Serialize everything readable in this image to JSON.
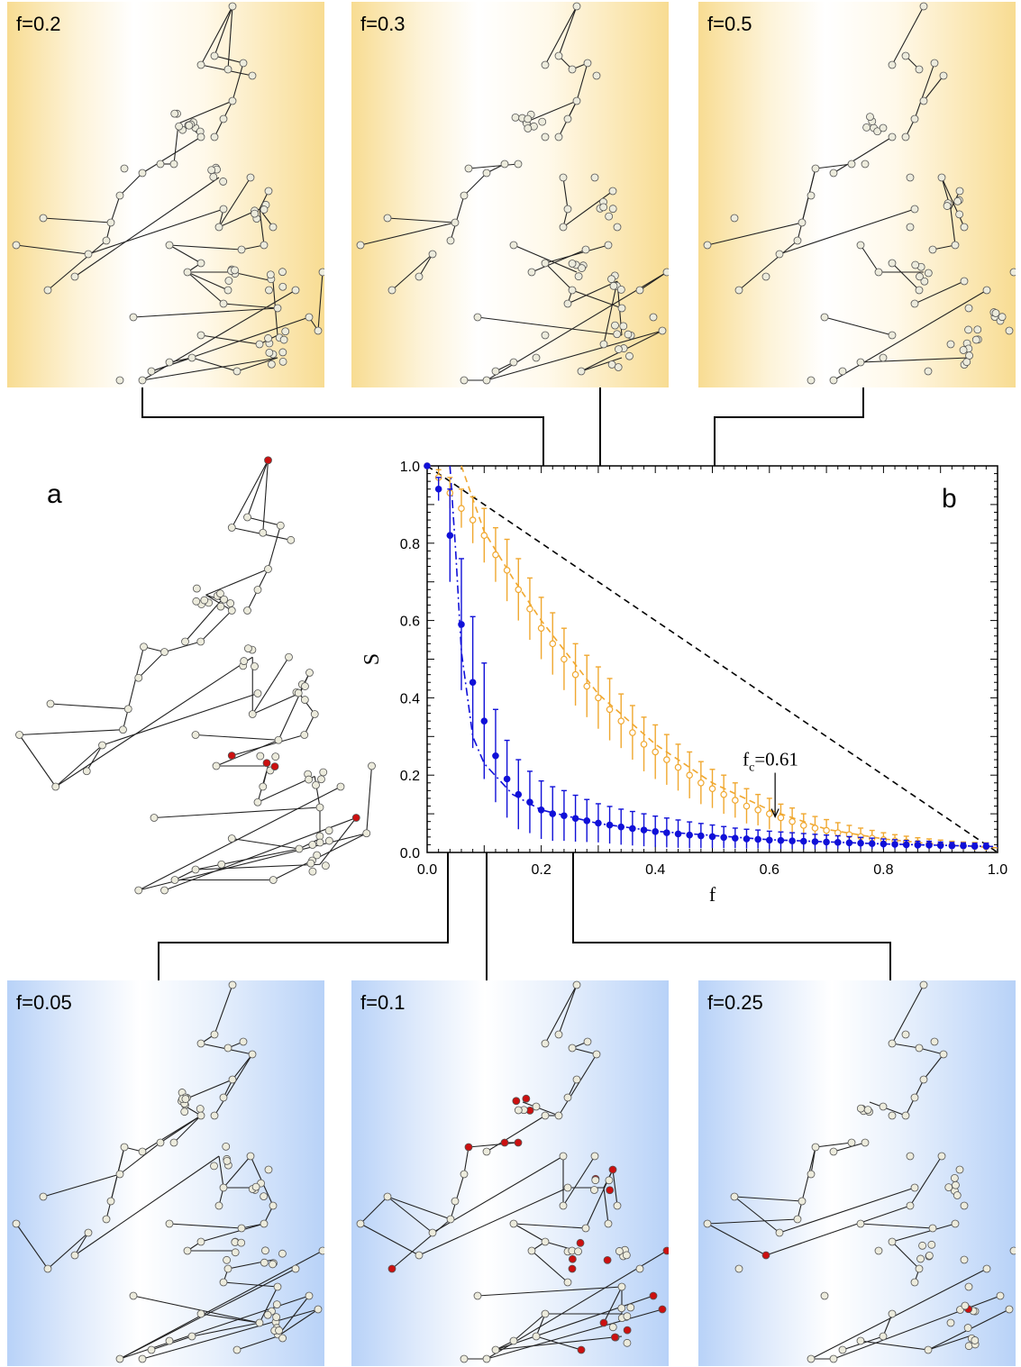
{
  "panels_top": [
    {
      "label": "f=0.2"
    },
    {
      "label": "f=0.3"
    },
    {
      "label": "f=0.5"
    }
  ],
  "panels_bottom": [
    {
      "label": "f=0.05"
    },
    {
      "label": "f=0.1"
    },
    {
      "label": "f=0.25"
    }
  ],
  "panel_a_label": "a",
  "panel_b_label": "b",
  "colors": {
    "orange_series": "#f0a830",
    "blue_series": "#1010d8",
    "red_node": "#cc1010",
    "node_fill": "#ecebdc",
    "orange_bg": "#f8dc92",
    "blue_bg": "#b8d2f8"
  },
  "chart_data": {
    "type": "scatter",
    "xlabel": "f",
    "ylabel": "S",
    "xlim": [
      0.0,
      1.0
    ],
    "ylim": [
      0.0,
      1.0
    ],
    "xticks": [
      "0.0",
      "0.2",
      "0.4",
      "0.6",
      "0.8",
      "1.0"
    ],
    "yticks": [
      "0.0",
      "0.2",
      "0.4",
      "0.6",
      "0.8",
      "1.0"
    ],
    "annotation": {
      "text_main": "f",
      "text_sub": "c",
      "text_rest": "=0.61",
      "x": 0.61,
      "y": 0.085
    },
    "series": [
      {
        "marker": "open-circle",
        "color": "#f0a830",
        "x": [
          0.0,
          0.02,
          0.04,
          0.06,
          0.08,
          0.1,
          0.12,
          0.14,
          0.16,
          0.18,
          0.2,
          0.22,
          0.24,
          0.26,
          0.28,
          0.3,
          0.32,
          0.34,
          0.36,
          0.38,
          0.4,
          0.42,
          0.44,
          0.46,
          0.48,
          0.5,
          0.52,
          0.54,
          0.56,
          0.58,
          0.6,
          0.62,
          0.64,
          0.66,
          0.68,
          0.7,
          0.72,
          0.74,
          0.76,
          0.78,
          0.8,
          0.82,
          0.84,
          0.86,
          0.88,
          0.9,
          0.92,
          0.94,
          0.96,
          0.98
        ],
        "y": [
          1.0,
          0.97,
          0.93,
          0.89,
          0.86,
          0.82,
          0.77,
          0.73,
          0.68,
          0.63,
          0.58,
          0.54,
          0.5,
          0.46,
          0.43,
          0.4,
          0.37,
          0.34,
          0.31,
          0.28,
          0.26,
          0.24,
          0.22,
          0.2,
          0.18,
          0.165,
          0.15,
          0.135,
          0.12,
          0.11,
          0.1,
          0.09,
          0.08,
          0.07,
          0.063,
          0.057,
          0.051,
          0.046,
          0.041,
          0.037,
          0.033,
          0.03,
          0.027,
          0.024,
          0.022,
          0.02,
          0.018,
          0.017,
          0.016,
          0.015
        ],
        "err": [
          0.0,
          0.02,
          0.04,
          0.05,
          0.06,
          0.07,
          0.07,
          0.08,
          0.08,
          0.08,
          0.08,
          0.08,
          0.08,
          0.08,
          0.08,
          0.08,
          0.08,
          0.07,
          0.07,
          0.07,
          0.07,
          0.065,
          0.06,
          0.06,
          0.055,
          0.05,
          0.05,
          0.045,
          0.045,
          0.04,
          0.04,
          0.035,
          0.035,
          0.03,
          0.03,
          0.028,
          0.026,
          0.024,
          0.022,
          0.02,
          0.018,
          0.016,
          0.015,
          0.014,
          0.013,
          0.012,
          0.011,
          0.01,
          0.01,
          0.01
        ]
      },
      {
        "marker": "filled-circle",
        "color": "#1010d8",
        "x": [
          0.0,
          0.02,
          0.04,
          0.06,
          0.08,
          0.1,
          0.12,
          0.14,
          0.16,
          0.18,
          0.2,
          0.22,
          0.24,
          0.26,
          0.28,
          0.3,
          0.32,
          0.34,
          0.36,
          0.38,
          0.4,
          0.42,
          0.44,
          0.46,
          0.48,
          0.5,
          0.52,
          0.54,
          0.56,
          0.58,
          0.6,
          0.62,
          0.64,
          0.66,
          0.68,
          0.7,
          0.72,
          0.74,
          0.76,
          0.78,
          0.8,
          0.82,
          0.84,
          0.86,
          0.88,
          0.9,
          0.92,
          0.94,
          0.96,
          0.98
        ],
        "y": [
          1.0,
          0.94,
          0.82,
          0.59,
          0.44,
          0.34,
          0.25,
          0.19,
          0.15,
          0.13,
          0.11,
          0.1,
          0.095,
          0.088,
          0.082,
          0.076,
          0.071,
          0.066,
          0.062,
          0.058,
          0.054,
          0.051,
          0.048,
          0.045,
          0.043,
          0.041,
          0.039,
          0.037,
          0.035,
          0.034,
          0.032,
          0.031,
          0.03,
          0.029,
          0.028,
          0.027,
          0.026,
          0.025,
          0.024,
          0.023,
          0.022,
          0.021,
          0.02,
          0.019,
          0.019,
          0.018,
          0.017,
          0.017,
          0.016,
          0.016
        ],
        "err": [
          0.0,
          0.03,
          0.12,
          0.17,
          0.17,
          0.15,
          0.12,
          0.1,
          0.09,
          0.08,
          0.075,
          0.07,
          0.065,
          0.06,
          0.055,
          0.05,
          0.048,
          0.046,
          0.044,
          0.042,
          0.04,
          0.038,
          0.036,
          0.034,
          0.032,
          0.03,
          0.028,
          0.026,
          0.025,
          0.024,
          0.023,
          0.022,
          0.021,
          0.02,
          0.019,
          0.018,
          0.017,
          0.016,
          0.015,
          0.014,
          0.013,
          0.012,
          0.011,
          0.01,
          0.01,
          0.009,
          0.009,
          0.008,
          0.008,
          0.008
        ]
      }
    ],
    "reference_lines": [
      {
        "style": "dashed",
        "color": "#000000",
        "x": [
          0.0,
          1.0
        ],
        "y": [
          1.0,
          0.0
        ]
      },
      {
        "style": "dashed",
        "color": "#f0a830",
        "x": [
          0.06,
          0.1,
          0.15,
          0.2,
          0.3,
          0.4,
          0.5,
          0.6,
          0.7,
          0.8,
          0.9,
          1.0
        ],
        "y": [
          1.0,
          0.83,
          0.71,
          0.6,
          0.41,
          0.28,
          0.18,
          0.11,
          0.06,
          0.035,
          0.02,
          0.012
        ]
      },
      {
        "style": "dashdot",
        "color": "#1010d8",
        "x": [
          0.04,
          0.05,
          0.06,
          0.08,
          0.1,
          0.15,
          0.2,
          0.3,
          0.4,
          0.6,
          0.8,
          1.0
        ],
        "y": [
          1.0,
          0.78,
          0.52,
          0.3,
          0.23,
          0.15,
          0.11,
          0.075,
          0.055,
          0.033,
          0.022,
          0.015
        ]
      }
    ]
  }
}
